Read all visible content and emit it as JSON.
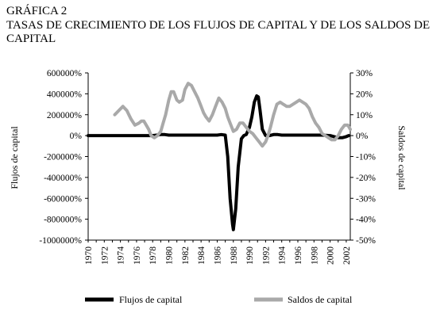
{
  "figure": {
    "title": "GRÁFICA 2",
    "subtitle": "TASAS DE CRECIMIENTO DE LOS FLUJOS DE CAPITAL Y DE LOS SALDOS DE CAPITAL"
  },
  "chart_data": {
    "type": "line",
    "xlabel": "",
    "ylabel_left": "Flujos de capital",
    "ylabel_right": "Saldos de capital",
    "x_ticks": [
      "1970",
      "1972",
      "1974",
      "1976",
      "1978",
      "1980",
      "1982",
      "1984",
      "1986",
      "1988",
      "1990",
      "1992",
      "1994",
      "1996",
      "1998",
      "2000",
      "2002"
    ],
    "xlim": [
      1970,
      2002.5
    ],
    "y_left": {
      "lim": [
        -1000000,
        600000
      ],
      "ticks": [
        600000,
        400000,
        200000,
        0,
        -200000,
        -400000,
        -600000,
        -800000,
        -1000000
      ],
      "tick_labels": [
        "600000%",
        "400000%",
        "200000%",
        "0%",
        "-200000%",
        "-400000%",
        "-600000%",
        "-800000%",
        "-1000000%"
      ]
    },
    "y_right": {
      "lim": [
        -50,
        30
      ],
      "ticks": [
        30,
        20,
        10,
        0,
        -10,
        -20,
        -30,
        -40,
        -50
      ],
      "tick_labels": [
        "30%",
        "20%",
        "10%",
        "0%",
        "-10%",
        "-20%",
        "-30%",
        "-40%",
        "-50%"
      ]
    },
    "legend_position": "bottom",
    "grid": false,
    "series": [
      {
        "name": "Flujos de capital",
        "axis": "left",
        "color": "#000000",
        "x": [
          1970,
          1971,
          1972,
          1973,
          1974,
          1975,
          1976,
          1977,
          1978,
          1978.5,
          1979,
          1979.5,
          1980,
          1981,
          1982,
          1983,
          1984,
          1985,
          1986,
          1986.5,
          1987,
          1987.3,
          1987.6,
          1987.9,
          1988,
          1988.3,
          1988.6,
          1989,
          1989.3,
          1989.6,
          1990,
          1990.3,
          1990.6,
          1990.9,
          1991.1,
          1991.3,
          1991.6,
          1992,
          1992.5,
          1993,
          1993.5,
          1994,
          1995,
          1996,
          1997,
          1998,
          1999,
          2000,
          2000.5,
          2001,
          2001.5,
          2002,
          2002.3
        ],
        "y": [
          0,
          0,
          0,
          0,
          0,
          0,
          0,
          0,
          0,
          5000,
          10000,
          10000,
          5000,
          5000,
          5000,
          5000,
          5000,
          5000,
          5000,
          10000,
          5000,
          -200000,
          -600000,
          -850000,
          -900000,
          -700000,
          -300000,
          -30000,
          0,
          10000,
          80000,
          180000,
          320000,
          380000,
          370000,
          250000,
          60000,
          0,
          0,
          10000,
          10000,
          5000,
          5000,
          5000,
          5000,
          5000,
          5000,
          0,
          -10000,
          -20000,
          -20000,
          -10000,
          0
        ]
      },
      {
        "name": "Saldos de capital",
        "axis": "right",
        "color": "#a9a9a9",
        "x": [
          1973.3,
          1973.8,
          1974.3,
          1974.8,
          1975.3,
          1975.8,
          1976.3,
          1976.6,
          1976.9,
          1977.2,
          1977.5,
          1977.8,
          1978.2,
          1978.6,
          1979,
          1979.3,
          1979.6,
          1980,
          1980.3,
          1980.6,
          1981,
          1981.3,
          1981.7,
          1982,
          1982.4,
          1982.8,
          1983.2,
          1983.6,
          1984,
          1984.3,
          1984.6,
          1985,
          1985.4,
          1985.8,
          1986.2,
          1986.6,
          1987,
          1987.3,
          1987.6,
          1988,
          1988.4,
          1988.8,
          1989.2,
          1989.6,
          1990,
          1990.4,
          1990.8,
          1991.2,
          1991.6,
          1992,
          1992.3,
          1992.6,
          1993,
          1993.4,
          1993.8,
          1994.2,
          1994.6,
          1995,
          1995.4,
          1995.8,
          1996.2,
          1996.6,
          1997,
          1997.4,
          1997.8,
          1998.2,
          1998.6,
          1999,
          1999.4,
          1999.8,
          2000.2,
          2000.6,
          2001,
          2001.4,
          2001.8,
          2002.2,
          2002.5
        ],
        "y": [
          10,
          12,
          14,
          12,
          8,
          5,
          6,
          7,
          7,
          5,
          3,
          0,
          -1,
          0,
          2,
          6,
          10,
          17,
          21,
          21,
          17,
          16,
          17,
          22,
          25,
          24,
          21,
          18,
          14,
          11,
          9,
          7,
          10,
          14,
          18,
          16,
          13,
          9,
          6,
          2,
          3,
          6,
          6,
          4,
          2,
          1,
          -1,
          -3,
          -5,
          -3,
          0,
          4,
          10,
          15,
          16,
          15,
          14,
          14,
          15,
          16,
          17,
          16,
          15,
          13,
          9,
          6,
          4,
          1,
          0,
          -1,
          -2,
          -2,
          0,
          3,
          5,
          5,
          3
        ]
      }
    ]
  }
}
